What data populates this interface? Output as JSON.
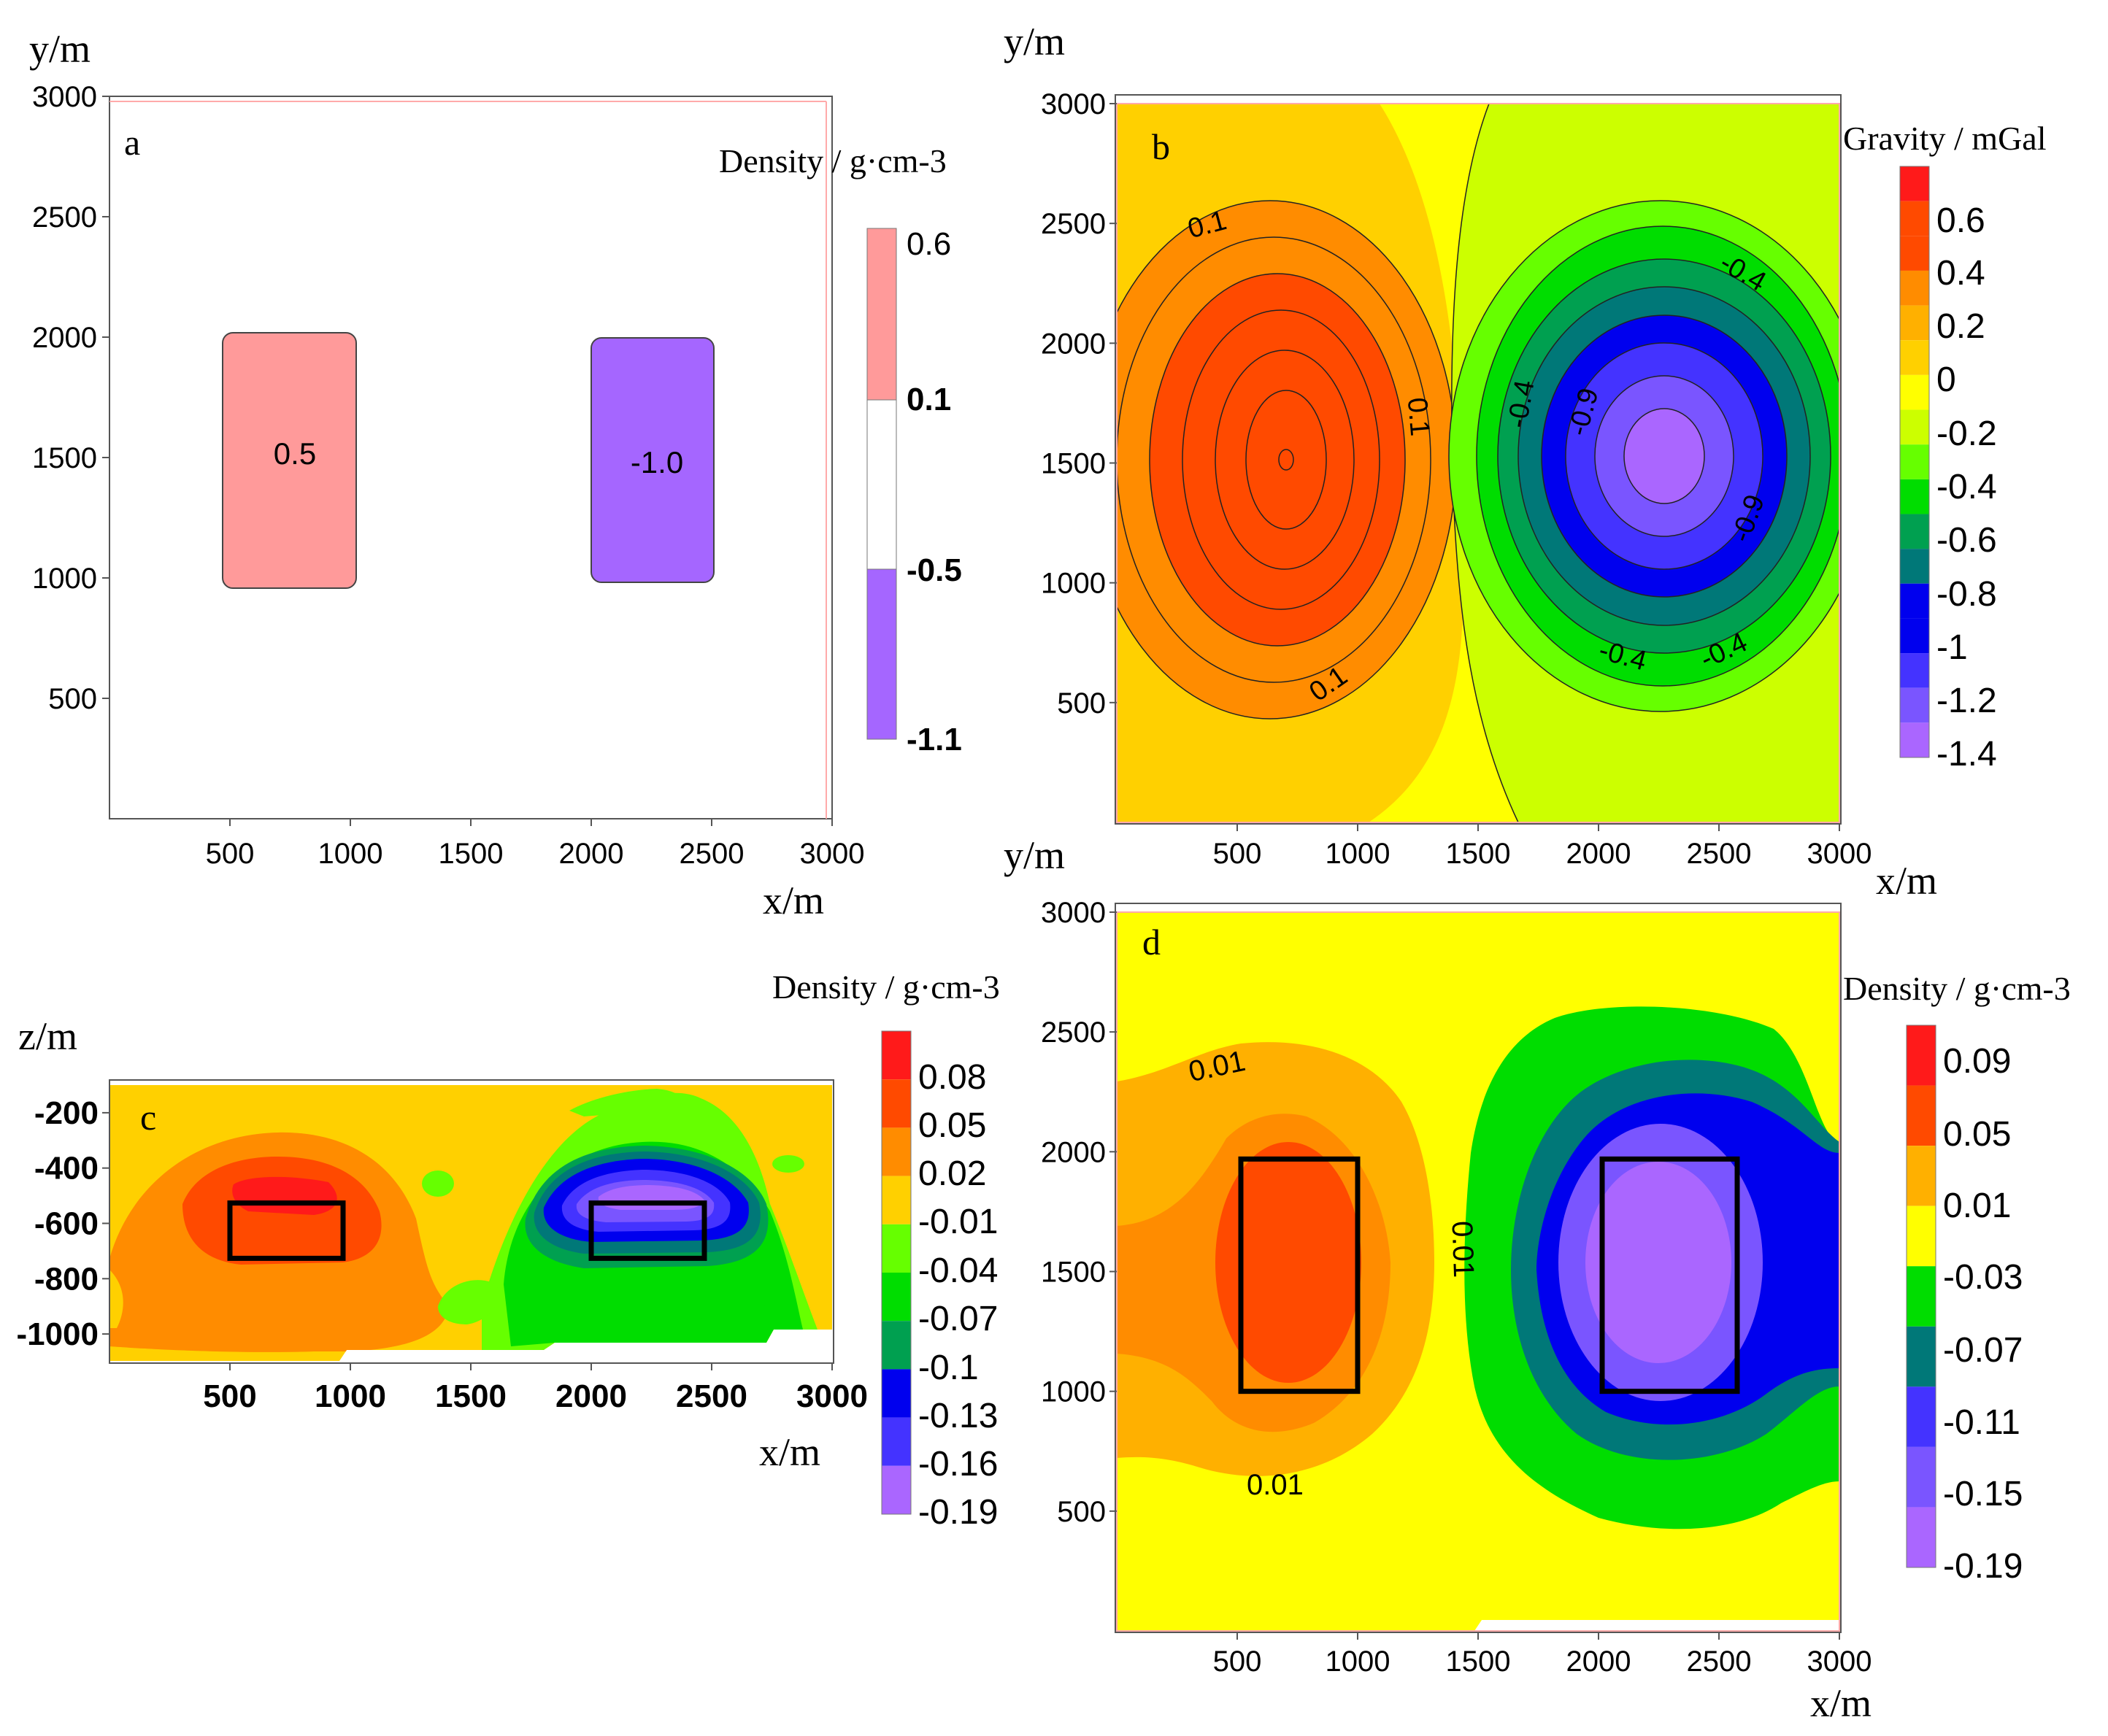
{
  "colors": {
    "red": "#ff1a1a",
    "orange_red": "#ff4a00",
    "orange": "#ff8c00",
    "amber": "#ffb000",
    "gold": "#ffd000",
    "yellow": "#ffff00",
    "yellow_green": "#ccff00",
    "light_green": "#66ff00",
    "green": "#00dd00",
    "dark_green": "#00a050",
    "teal": "#007878",
    "blue": "#0000ee",
    "blue_violet": "#4433ff",
    "violet": "#7a55ff",
    "lavender": "#aa66ff",
    "pink": "#ff9a9a",
    "purple": "#a566ff"
  },
  "chart_data": [
    {
      "panel": "a",
      "type": "heatmap",
      "title": "",
      "xlabel": "x/m",
      "ylabel": "y/m",
      "xlim": [
        0,
        3000
      ],
      "ylim": [
        0,
        3000
      ],
      "xticks": [
        "500",
        "1000",
        "1500",
        "2000",
        "2500",
        "3000"
      ],
      "yticks": [
        "500",
        "1000",
        "1500",
        "2000",
        "2500",
        "3000"
      ],
      "colorbar": {
        "title": "Density / g·cm-3",
        "labels": [
          "0.6",
          "0.1",
          "-0.5",
          "-1.1"
        ]
      },
      "bodies": [
        {
          "label": "0.5",
          "x": [
            500,
            1000
          ],
          "y": [
            1000,
            2000
          ],
          "color": "#ff9a9a"
        },
        {
          "label": "-1.0",
          "x": [
            2000,
            2500
          ],
          "y": [
            1000,
            2000
          ],
          "color": "#a566ff"
        }
      ]
    },
    {
      "panel": "b",
      "type": "heatmap",
      "xlabel": "x/m",
      "ylabel": "y/m",
      "xlim": [
        0,
        3000
      ],
      "ylim": [
        0,
        3000
      ],
      "xticks": [
        "500",
        "1000",
        "1500",
        "2000",
        "2500",
        "3000"
      ],
      "yticks": [
        "500",
        "1000",
        "1500",
        "2000",
        "2500",
        "3000"
      ],
      "colorbar": {
        "title": "Gravity / mGal",
        "labels": [
          "0.6",
          "0.4",
          "0.2",
          "0",
          "-0.2",
          "-0.4",
          "-0.6",
          "-0.8",
          "-1",
          "-1.2",
          "-1.4"
        ]
      },
      "anomalies": [
        {
          "center": [
            700,
            1500
          ],
          "peak": 0.7,
          "sign": "positive"
        },
        {
          "center": [
            2250,
            1500
          ],
          "peak": -1.4,
          "sign": "negative"
        }
      ],
      "contour_labels": [
        "0.1",
        "0.1",
        "0.1",
        "-0.4",
        "-0.4",
        "-0.4",
        "-0.4",
        "-0.9",
        "-0.9"
      ]
    },
    {
      "panel": "c",
      "type": "heatmap",
      "xlabel": "x/m",
      "ylabel": "z/m",
      "xlim": [
        0,
        3000
      ],
      "ylim": [
        -1100,
        -100
      ],
      "xticks": [
        "500",
        "1000",
        "1500",
        "2000",
        "2500",
        "3000"
      ],
      "yticks": [
        "-200",
        "-400",
        "-600",
        "-800",
        "-1000"
      ],
      "colorbar": {
        "title": "Density / g·cm-3",
        "labels": [
          "0.08",
          "0.05",
          "0.02",
          "-0.01",
          "-0.04",
          "-0.07",
          "-0.1",
          "-0.13",
          "-0.16",
          "-0.19"
        ]
      },
      "model_boxes": [
        {
          "x": [
            500,
            1000
          ],
          "z": [
            -500,
            -700
          ]
        },
        {
          "x": [
            2000,
            2500
          ],
          "z": [
            -500,
            -700
          ]
        }
      ]
    },
    {
      "panel": "d",
      "type": "heatmap",
      "xlabel": "x/m",
      "ylabel": "y/m",
      "xlim": [
        0,
        3000
      ],
      "ylim": [
        0,
        3000
      ],
      "xticks": [
        "500",
        "1000",
        "1500",
        "2000",
        "2500",
        "3000"
      ],
      "yticks": [
        "500",
        "1000",
        "1500",
        "2000",
        "2500",
        "3000"
      ],
      "colorbar": {
        "title": "Density / g·cm-3",
        "labels": [
          "0.09",
          "0.05",
          "0.01",
          "-0.03",
          "-0.07",
          "-0.11",
          "-0.15",
          "-0.19"
        ]
      },
      "contour_labels": [
        "0.01",
        "0.01",
        "0.01"
      ],
      "model_boxes": [
        {
          "x": [
            500,
            1000
          ],
          "y": [
            1000,
            2000
          ]
        },
        {
          "x": [
            2000,
            2500
          ],
          "y": [
            1000,
            2000
          ]
        }
      ]
    }
  ]
}
